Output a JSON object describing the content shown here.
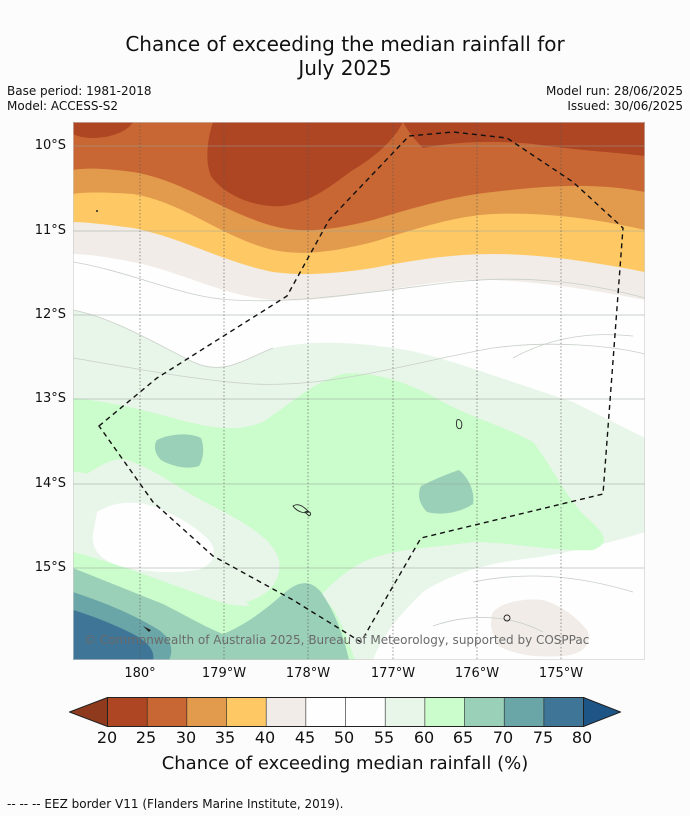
{
  "title_line1": "Chance of exceeding the median rainfall for",
  "title_line2": "July 2025",
  "meta": {
    "base_period": "Base period: 1981-2018",
    "model": "Model: ACCESS-S2",
    "model_run": "Model run: 28/06/2025",
    "issued": "Issued: 30/06/2025"
  },
  "lat_labels": [
    "10°S",
    "11°S",
    "12°S",
    "13°S",
    "14°S",
    "15°S"
  ],
  "lon_labels": [
    "180°",
    "179°W",
    "178°W",
    "177°W",
    "176°W",
    "175°W"
  ],
  "copyright": "© Commonwealth of Australia 2025, Bureau of Meteorology, supported by COSPPac",
  "colorbar": {
    "ticks": [
      "20",
      "25",
      "30",
      "35",
      "40",
      "45",
      "50",
      "55",
      "60",
      "65",
      "70",
      "75",
      "80"
    ],
    "title": "Chance of exceeding median rainfall (%)",
    "colors": {
      "lt20": "#8f3a1c",
      "20-25": "#ae4523",
      "25-30": "#c86733",
      "30-35": "#e29a4d",
      "35-40": "#fec965",
      "40-45": "#f1ece7",
      "45-50": "#fdfefd",
      "50-55": "#fdfefd",
      "55-60": "#e8f5e9",
      "60-65": "#cbfccb",
      "65-70": "#9bd0b8",
      "70-75": "#6aa6a7",
      "75-80": "#3f7596",
      "gt80": "#1d5586"
    }
  },
  "footnote": "-- -- -- EEZ border V11 (Flanders Marine Institute, 2019)."
}
